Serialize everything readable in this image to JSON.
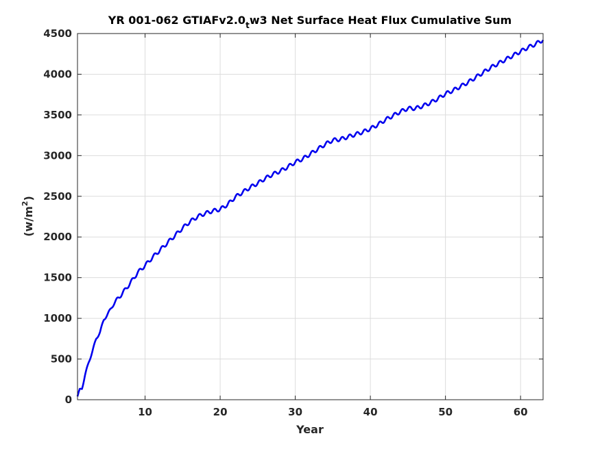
{
  "chart_data": {
    "type": "line",
    "title": {
      "prefix": "YR 001-062 GTIAFv2.0",
      "subscript": "t",
      "suffix": "w3 Net Surface Heat Flux  Cumulative Sum"
    },
    "xlabel": "Year",
    "ylabel": {
      "base": "(w/m",
      "sup": "2",
      "close": ")"
    },
    "xlim": [
      1,
      63
    ],
    "ylim": [
      0,
      4500
    ],
    "xticks": [
      10,
      20,
      30,
      40,
      50,
      60
    ],
    "yticks": [
      0,
      500,
      1000,
      1500,
      2000,
      2500,
      3000,
      3500,
      4000,
      4500
    ],
    "grid": true,
    "series": [
      {
        "color": "#0000ee",
        "seasonal_cycle": "annual",
        "x": [
          1,
          1.3,
          1.6,
          2,
          2.5,
          3,
          3.5,
          4,
          4.5,
          5,
          6,
          7,
          8,
          9,
          10,
          11,
          12,
          13,
          14,
          15,
          16,
          17,
          18,
          19,
          20,
          21,
          22,
          23,
          24,
          25,
          26,
          27,
          28,
          29,
          30,
          31,
          32,
          33,
          34,
          35,
          36,
          37,
          38,
          39,
          40,
          41,
          42,
          43,
          44,
          45,
          46,
          47,
          48,
          49,
          50,
          51,
          52,
          53,
          54,
          55,
          56,
          57,
          58,
          59,
          60,
          61,
          62,
          62.5,
          63
        ],
        "y": [
          40,
          120,
          140,
          300,
          460,
          600,
          750,
          830,
          980,
          1050,
          1200,
          1310,
          1430,
          1560,
          1650,
          1750,
          1840,
          1930,
          2020,
          2110,
          2190,
          2250,
          2290,
          2320,
          2340,
          2400,
          2490,
          2550,
          2610,
          2660,
          2720,
          2770,
          2810,
          2860,
          2920,
          2960,
          3020,
          3080,
          3140,
          3190,
          3200,
          3230,
          3260,
          3290,
          3330,
          3380,
          3440,
          3490,
          3540,
          3580,
          3580,
          3610,
          3650,
          3700,
          3760,
          3800,
          3850,
          3900,
          3960,
          4020,
          4080,
          4130,
          4180,
          4230,
          4280,
          4330,
          4370,
          4400,
          4420
        ]
      }
    ]
  }
}
